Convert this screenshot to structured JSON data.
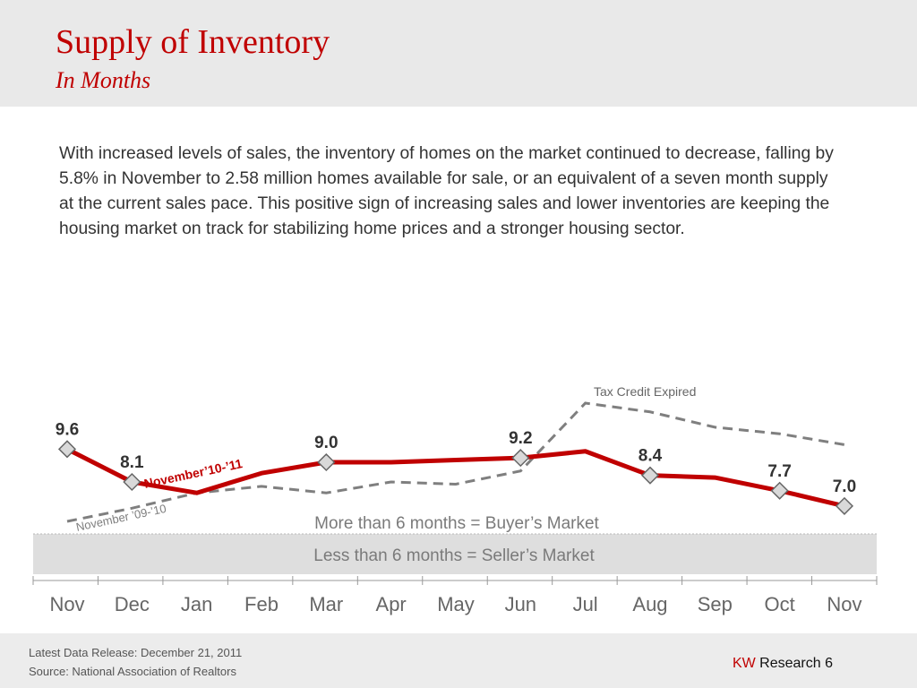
{
  "header": {
    "title": "Supply of Inventory",
    "subtitle": "In Months"
  },
  "body_text": "With increased levels of sales, the inventory of homes on the market continued to decrease, falling by 5.8% in November to 2.58 million homes available for sale, or an equivalent of a seven month supply at the current sales pace. This positive sign of increasing sales and lower inventories are keeping the housing market on track for stabilizing home prices and a stronger housing sector.",
  "chart_data": {
    "type": "line",
    "categories": [
      "Nov",
      "Dec",
      "Jan",
      "Feb",
      "Mar",
      "Apr",
      "May",
      "Jun",
      "Jul",
      "Aug",
      "Sep",
      "Oct",
      "Nov"
    ],
    "series": [
      {
        "name": "November’10-’11",
        "style": "solid",
        "color": "#c00000",
        "values": [
          9.6,
          8.1,
          7.6,
          8.5,
          9.0,
          9.0,
          9.1,
          9.2,
          9.5,
          8.4,
          8.3,
          7.7,
          7.0
        ],
        "data_labels": [
          "9.6",
          "8.1",
          "",
          "",
          "9.0",
          "",
          "",
          "9.2",
          "",
          "8.4",
          "",
          "7.7",
          "7.0"
        ]
      },
      {
        "name": "November ’09-’10",
        "style": "dashed",
        "color": "#7f7f7f",
        "values": [
          6.3,
          6.9,
          7.6,
          7.9,
          7.6,
          8.1,
          8.0,
          8.6,
          11.7,
          11.3,
          10.6,
          10.3,
          9.8
        ]
      }
    ],
    "ylim": [
      5.5,
      12.5
    ],
    "grid": false,
    "annotations": {
      "tax_credit": "Tax Credit Expired",
      "buyers_market": "More than 6 months = Buyer’s Market",
      "sellers_market": "Less than 6 months = Seller’s Market"
    },
    "threshold_months": 6
  },
  "footer": {
    "release": "Latest Data Release: December 21, 2011",
    "source": "Source: National Association of Realtors",
    "brand_kw": "KW",
    "brand_rest": " Research 6"
  },
  "colors": {
    "accent": "#c00000",
    "header_bg": "#e9e9e9",
    "band": "#dedede"
  }
}
